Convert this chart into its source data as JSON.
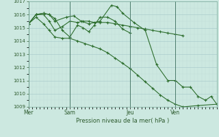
{
  "xlabel": "Pression niveau de la mer( hPa )",
  "bg_color": "#cce8e0",
  "grid_major_color": "#aacccc",
  "grid_minor_color": "#c0ddd8",
  "line_color": "#2d6e2d",
  "ylim": [
    1009,
    1017
  ],
  "yticks": [
    1009,
    1010,
    1011,
    1012,
    1013,
    1014,
    1015,
    1016,
    1017
  ],
  "day_labels": [
    "Mer",
    "Sam",
    "Jeu",
    "Ven"
  ],
  "day_positions": [
    0.0,
    0.22,
    0.54,
    0.78
  ],
  "series": [
    {
      "x": [
        0.0,
        0.04,
        0.08,
        0.11,
        0.14,
        0.2,
        0.24,
        0.28,
        0.32,
        0.38,
        0.44,
        0.47,
        0.5,
        0.56,
        0.62,
        0.68,
        0.74,
        0.78,
        0.82,
        0.86,
        0.9,
        0.94,
        0.97,
        1.0
      ],
      "y": [
        1015.3,
        1016.0,
        1016.1,
        1016.0,
        1015.5,
        1015.8,
        1015.9,
        1015.5,
        1015.3,
        1015.5,
        1016.7,
        1016.6,
        1016.1,
        1015.4,
        1014.8,
        1012.2,
        1011.0,
        1011.0,
        1010.5,
        1010.5,
        1009.8,
        1009.5,
        1009.8,
        1009.2
      ]
    },
    {
      "x": [
        0.0,
        0.04,
        0.08,
        0.11,
        0.14,
        0.18,
        0.22,
        0.26,
        0.29,
        0.32,
        0.35,
        0.38,
        0.42,
        0.46,
        0.5,
        0.54
      ],
      "y": [
        1015.3,
        1016.0,
        1016.1,
        1016.0,
        1015.7,
        1014.8,
        1014.3,
        1015.2,
        1015.0,
        1014.7,
        1015.2,
        1015.8,
        1015.8,
        1015.5,
        1014.9,
        1014.6
      ]
    },
    {
      "x": [
        0.0,
        0.04,
        0.08,
        0.11,
        0.14,
        0.18,
        0.22,
        0.26,
        0.29,
        0.32,
        0.35,
        0.38,
        0.42,
        0.46,
        0.5,
        0.54,
        0.58,
        0.62,
        0.66,
        0.7,
        0.74,
        0.78,
        0.82
      ],
      "y": [
        1015.3,
        1016.0,
        1016.0,
        1015.5,
        1014.8,
        1015.1,
        1015.5,
        1015.4,
        1015.5,
        1015.5,
        1015.4,
        1015.4,
        1015.4,
        1015.3,
        1015.2,
        1015.1,
        1015.0,
        1014.9,
        1014.8,
        1014.7,
        1014.6,
        1014.5,
        1014.4
      ]
    },
    {
      "x": [
        0.0,
        0.04,
        0.08,
        0.11,
        0.14,
        0.18,
        0.22,
        0.26,
        0.3,
        0.34,
        0.38,
        0.42,
        0.46,
        0.5,
        0.54,
        0.58,
        0.62,
        0.66,
        0.7,
        0.74,
        0.78,
        0.82,
        0.9,
        1.0
      ],
      "y": [
        1015.3,
        1015.8,
        1015.3,
        1014.8,
        1014.3,
        1014.2,
        1014.2,
        1014.0,
        1013.8,
        1013.6,
        1013.4,
        1013.1,
        1012.7,
        1012.3,
        1011.9,
        1011.4,
        1010.9,
        1010.4,
        1009.9,
        1009.5,
        1009.2,
        1009.0,
        1009.1,
        1009.2
      ]
    }
  ]
}
